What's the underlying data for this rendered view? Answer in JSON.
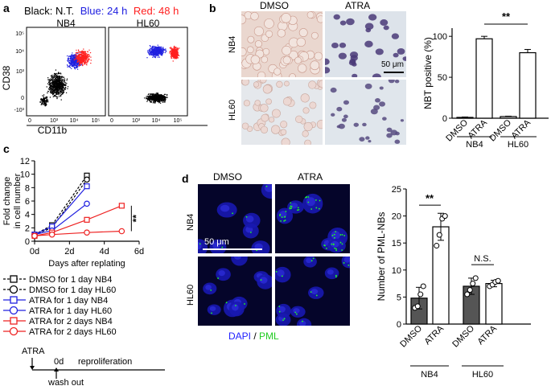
{
  "panel_labels": {
    "a": "a",
    "b": "b",
    "c": "c",
    "d": "d"
  },
  "panel_a": {
    "legend_black": "Black: N.T.",
    "legend_blue": "Blue: 24 h",
    "legend_red": "Red: 48 h",
    "titles": [
      "NB4",
      "HL60"
    ],
    "ylabel": "CD38",
    "xlabel": "CD11b",
    "yticks": [
      "10⁵",
      "10⁴",
      "10³",
      "0",
      "-10³"
    ],
    "xticks": [
      "0",
      "10³",
      "10⁴",
      "10⁵"
    ],
    "colors": {
      "black": "#000000",
      "blue": "#2020e0",
      "red": "#ff2020"
    }
  },
  "panel_b_images": {
    "col_titles": [
      "DMSO",
      "ATRA"
    ],
    "row_titles": [
      "NB4",
      "HL60"
    ],
    "scale": "50 μm"
  },
  "panel_d_images": {
    "col_titles": [
      "DMSO",
      "ATRA"
    ],
    "row_titles": [
      "NB4",
      "HL60"
    ],
    "scale": "50 μm",
    "stain_dapi": "DAPI",
    "stain_sep": " / ",
    "stain_pml": "PML",
    "colors": {
      "dapi": "#2020ff",
      "pml": "#20ff20"
    }
  },
  "chart_data": [
    {
      "panel": "b",
      "type": "bar",
      "ylabel": "NBT positive (%)",
      "ylim": [
        0,
        110
      ],
      "yticks": [
        "0",
        "50",
        "100"
      ],
      "categories": [
        "DMSO",
        "ATRA",
        "DMSO",
        "ATRA"
      ],
      "groups": [
        "NB4",
        "HL60"
      ],
      "values": [
        1,
        97,
        2,
        80
      ],
      "errors": [
        0.5,
        3,
        0.5,
        4
      ],
      "significance": "**"
    },
    {
      "panel": "c",
      "type": "line",
      "ylabel": "Fold change in cell number",
      "xlabel": "Days after replating",
      "xticks": [
        "0d",
        "2d",
        "4d",
        "6d"
      ],
      "yticks": [
        "0",
        "2",
        "4",
        "6",
        "8",
        "10",
        "12"
      ],
      "ylim": [
        0,
        12
      ],
      "x": [
        0,
        1,
        3,
        5
      ],
      "significance": "**",
      "series": [
        {
          "name": "DMSO for 1 day NB4",
          "color": "#000000",
          "marker": "square",
          "dash": true,
          "values": [
            1,
            2.4,
            9.8,
            null
          ]
        },
        {
          "name": "DMSO for 1 day HL60",
          "color": "#000000",
          "marker": "circle",
          "dash": true,
          "values": [
            1,
            2,
            9.2,
            null
          ]
        },
        {
          "name": "ATRA for 1 day NB4",
          "color": "#2020e0",
          "marker": "square",
          "dash": false,
          "values": [
            1,
            2.2,
            8.2,
            null
          ]
        },
        {
          "name": "ATRA for 1 day HL60",
          "color": "#2020e0",
          "marker": "circle",
          "dash": false,
          "values": [
            1,
            1.6,
            5.6,
            null
          ]
        },
        {
          "name": "ATRA for 2 days NB4",
          "color": "#ee2222",
          "marker": "square",
          "dash": false,
          "values": [
            0.8,
            1.3,
            3.2,
            5.3
          ]
        },
        {
          "name": "ATRA for 2 days HL60",
          "color": "#ee2222",
          "marker": "circle",
          "dash": false,
          "values": [
            0.8,
            1.0,
            1.3,
            1.5
          ]
        }
      ]
    },
    {
      "panel": "d",
      "type": "bar",
      "ylabel": "Number of PML-NBs",
      "ylim": [
        0,
        25
      ],
      "yticks": [
        "0",
        "5",
        "10",
        "15",
        "20",
        "25"
      ],
      "categories": [
        "DMSO",
        "ATRA",
        "DMSO",
        "ATRA"
      ],
      "groups": [
        "NB4",
        "HL60"
      ],
      "values": [
        4.8,
        18,
        7,
        7.5
      ],
      "errors": [
        2,
        2.5,
        1.5,
        0.6
      ],
      "points": [
        [
          3,
          3.3,
          5.5,
          7
        ],
        [
          14.5,
          16.5,
          19.5,
          20
        ],
        [
          5.5,
          6.3,
          7.5,
          8.5
        ],
        [
          7,
          7.3,
          7.8,
          8
        ]
      ],
      "significance": [
        "**",
        "N.S."
      ]
    }
  ],
  "panel_c_timeline": {
    "start": "ATRA",
    "zero": "0d",
    "phase": "reproliferation",
    "washout": "wash out"
  }
}
